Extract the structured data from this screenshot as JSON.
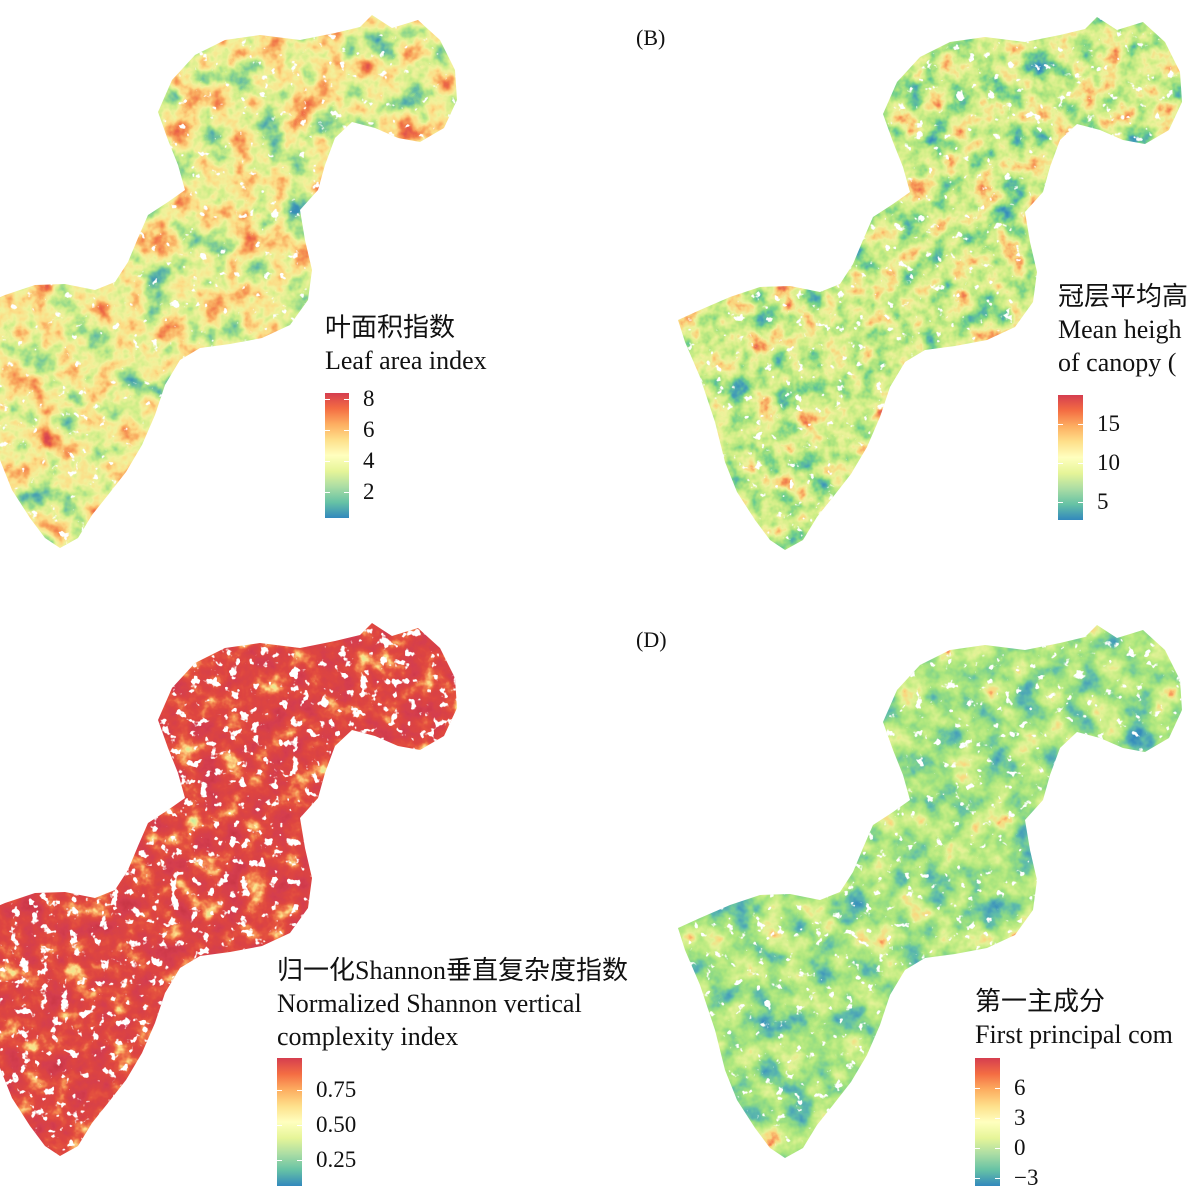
{
  "figure": {
    "colormap": [
      "#3288bd",
      "#66c2a5",
      "#abdda4",
      "#e6f598",
      "#ffffbf",
      "#fee08b",
      "#fdae61",
      "#f46d43",
      "#d53e4f"
    ],
    "panels": {
      "top_left": {
        "legend": {
          "title_lines": [
            "叶面积指数",
            "Leaf area index"
          ],
          "range": [
            0.3,
            8.4
          ],
          "ticks": [
            {
              "value": 8,
              "label": "8"
            },
            {
              "value": 6,
              "label": "6"
            },
            {
              "value": 4,
              "label": "4"
            },
            {
              "value": 2,
              "label": "2"
            }
          ]
        }
      },
      "top_right": {
        "label": "(B)",
        "legend": {
          "title_lines": [
            "冠层平均高",
            "Mean heigh",
            "of canopy ("
          ],
          "range": [
            2.7,
            18.7
          ],
          "ticks": [
            {
              "value": 15,
              "label": "15"
            },
            {
              "value": 10,
              "label": "10"
            },
            {
              "value": 5,
              "label": "5"
            }
          ]
        }
      },
      "bottom_left": {
        "legend": {
          "title_lines": [
            "归一化Shannon垂直复杂度指数",
            "Normalized Shannon vertical",
            "complexity index"
          ],
          "range": [
            0.06,
            0.98
          ],
          "ticks": [
            {
              "value": 0.75,
              "label": "0.75"
            },
            {
              "value": 0.5,
              "label": "0.50"
            },
            {
              "value": 0.25,
              "label": "0.25"
            }
          ]
        }
      },
      "bottom_right": {
        "label": "(D)",
        "legend": {
          "title_lines": [
            "第一主成分",
            "First principal com"
          ],
          "range": [
            -3.8,
            9
          ],
          "ticks": [
            {
              "value": 6,
              "label": "6"
            },
            {
              "value": 3,
              "label": "3"
            },
            {
              "value": 0,
              "label": "0"
            },
            {
              "value": -3,
              "label": "−3"
            }
          ]
        }
      }
    }
  }
}
